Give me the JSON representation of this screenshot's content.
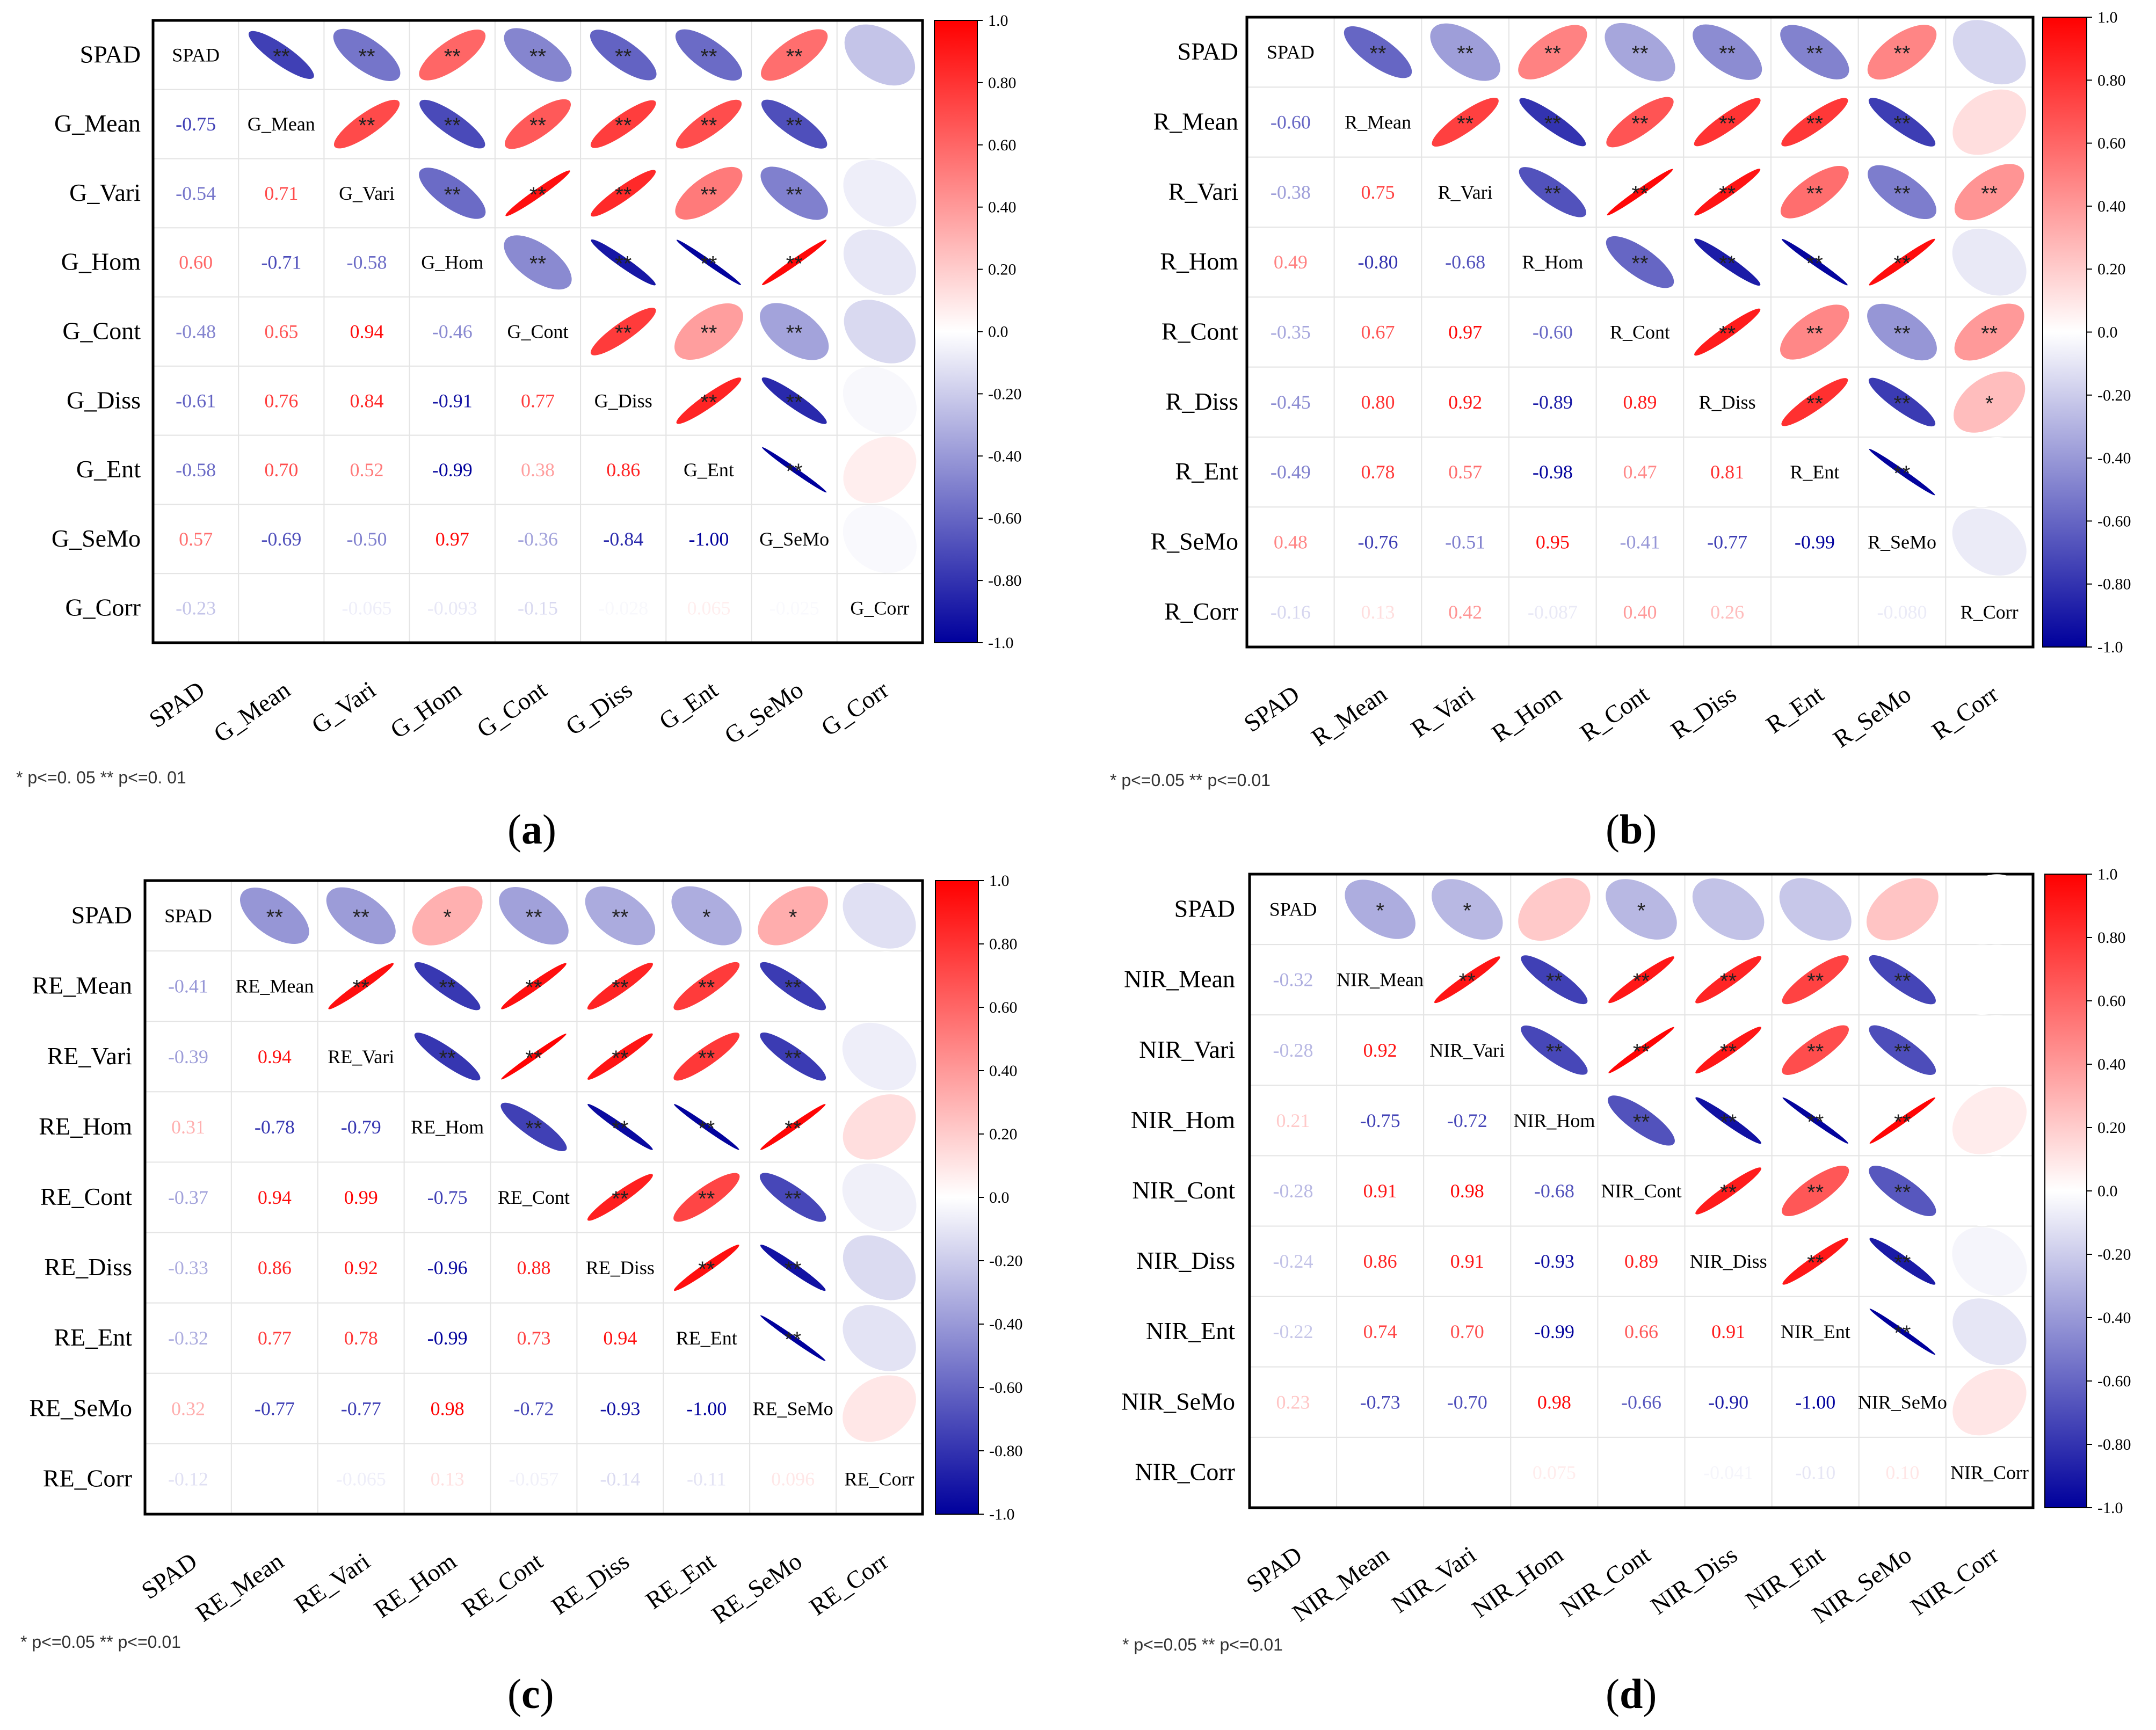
{
  "significance_legend": [
    "*",
    " p<=0. 05",
    "**",
    " p<=0. 01"
  ],
  "chart_data": [
    {
      "type": "heatmap",
      "panel_label": "a",
      "variables": [
        "SPAD",
        "G_Mean",
        "G_Vari",
        "G_Hom",
        "G_Cont",
        "G_Diss",
        "G_Ent",
        "G_SeMo",
        "G_Corr"
      ],
      "upper": "ellipse",
      "lower": "number",
      "colorbar_ticks": [
        "1.0",
        "0.80",
        "0.60",
        "0.40",
        "0.20",
        "0.0",
        "-0.20",
        "-0.40",
        "-0.60",
        "-0.80",
        "-1.0"
      ],
      "colorbar_range": [
        -1,
        1
      ],
      "colors": {
        "negative": "#00009c",
        "zero": "#ffffff",
        "positive": "#ff0000"
      },
      "footnote": "* p<=0. 05  ** p<=0. 01",
      "lower_labels": [
        [],
        [
          "-0.75"
        ],
        [
          "-0.54",
          "0.71"
        ],
        [
          "0.60",
          "-0.71",
          "-0.58"
        ],
        [
          "-0.48",
          "0.65",
          "0.94",
          "-0.46"
        ],
        [
          "-0.61",
          "0.76",
          "0.84",
          "-0.91",
          "0.77"
        ],
        [
          "-0.58",
          "0.70",
          "0.52",
          "-0.99",
          "0.38",
          "0.86"
        ],
        [
          "0.57",
          "-0.69",
          "-0.50",
          "0.97",
          "-0.36",
          "-0.84",
          "-1.00"
        ],
        [
          "-0.23",
          "",
          "-0.065",
          "-0.093",
          "-0.15",
          "-0.028",
          "0.065",
          "-0.025"
        ]
      ],
      "matrix": [
        [
          1,
          -0.75,
          -0.54,
          0.6,
          -0.48,
          -0.61,
          -0.58,
          0.57,
          -0.23
        ],
        [
          -0.75,
          1,
          0.71,
          -0.71,
          0.65,
          0.76,
          0.7,
          -0.69,
          0.0
        ],
        [
          -0.54,
          0.71,
          1,
          -0.58,
          0.94,
          0.84,
          0.52,
          -0.5,
          -0.065
        ],
        [
          0.6,
          -0.71,
          -0.58,
          1,
          -0.46,
          -0.91,
          -0.99,
          0.97,
          -0.093
        ],
        [
          -0.48,
          0.65,
          0.94,
          -0.46,
          1,
          0.77,
          0.38,
          -0.36,
          -0.15
        ],
        [
          -0.61,
          0.76,
          0.84,
          -0.91,
          0.77,
          1,
          0.86,
          -0.84,
          -0.028
        ],
        [
          -0.58,
          0.7,
          0.52,
          -0.99,
          0.38,
          0.86,
          1,
          -1.0,
          0.065
        ],
        [
          0.57,
          -0.69,
          -0.5,
          0.97,
          -0.36,
          -0.84,
          -1.0,
          1,
          -0.025
        ],
        [
          -0.23,
          0.0,
          -0.065,
          -0.093,
          -0.15,
          -0.028,
          0.065,
          -0.025,
          1
        ]
      ],
      "significance": [
        [],
        [
          "**"
        ],
        [
          "**",
          "**"
        ],
        [
          "**",
          "**",
          "**"
        ],
        [
          "**",
          "**",
          "**",
          "**"
        ],
        [
          "**",
          "**",
          "**",
          "**",
          "**"
        ],
        [
          "**",
          "**",
          "**",
          "**",
          "**",
          "**"
        ],
        [
          "**",
          "**",
          "**",
          "**",
          "**",
          "**",
          "**"
        ],
        [
          "",
          "",
          "",
          "",
          "",
          "",
          "",
          ""
        ]
      ]
    },
    {
      "type": "heatmap",
      "panel_label": "b",
      "variables": [
        "SPAD",
        "R_Mean",
        "R_Vari",
        "R_Hom",
        "R_Cont",
        "R_Diss",
        "R_Ent",
        "R_SeMo",
        "R_Corr"
      ],
      "upper": "ellipse",
      "lower": "number",
      "colorbar_ticks": [
        "1.0",
        "0.80",
        "0.60",
        "0.40",
        "0.20",
        "0.0",
        "-0.20",
        "-0.40",
        "-0.60",
        "-0.80",
        "-1.0"
      ],
      "colorbar_range": [
        -1,
        1
      ],
      "colors": {
        "negative": "#00009c",
        "zero": "#ffffff",
        "positive": "#ff0000"
      },
      "footnote": "* p<=0.05 ** p<=0.01",
      "lower_labels": [
        [],
        [
          "-0.60"
        ],
        [
          "-0.38",
          "0.75"
        ],
        [
          "0.49",
          "-0.80",
          "-0.68"
        ],
        [
          "-0.35",
          "0.67",
          "0.97",
          "-0.60"
        ],
        [
          "-0.45",
          "0.80",
          "0.92",
          "-0.89",
          "0.89"
        ],
        [
          "-0.49",
          "0.78",
          "0.57",
          "-0.98",
          "0.47",
          "0.81"
        ],
        [
          "0.48",
          "-0.76",
          "-0.51",
          "0.95",
          "-0.41",
          "-0.77",
          "-0.99"
        ],
        [
          "-0.16",
          "0.13",
          "0.42",
          "-0.087",
          "0.40",
          "0.26",
          "",
          "-0.080"
        ]
      ],
      "matrix": [
        [
          1,
          -0.6,
          -0.38,
          0.49,
          -0.35,
          -0.45,
          -0.49,
          0.48,
          -0.16
        ],
        [
          -0.6,
          1,
          0.75,
          -0.8,
          0.67,
          0.8,
          0.78,
          -0.76,
          0.13
        ],
        [
          -0.38,
          0.75,
          1,
          -0.68,
          0.97,
          0.92,
          0.57,
          -0.51,
          0.42
        ],
        [
          0.49,
          -0.8,
          -0.68,
          1,
          -0.6,
          -0.89,
          -0.98,
          0.95,
          -0.087
        ],
        [
          -0.35,
          0.67,
          0.97,
          -0.6,
          1,
          0.89,
          0.47,
          -0.41,
          0.4
        ],
        [
          -0.45,
          0.8,
          0.92,
          -0.89,
          0.89,
          1,
          0.81,
          -0.77,
          0.26
        ],
        [
          -0.49,
          0.78,
          0.57,
          -0.98,
          0.47,
          0.81,
          1,
          -0.99,
          0.0
        ],
        [
          0.48,
          -0.76,
          -0.51,
          0.95,
          -0.41,
          -0.77,
          -0.99,
          1,
          -0.08
        ],
        [
          -0.16,
          0.13,
          0.42,
          -0.087,
          0.4,
          0.26,
          0.0,
          -0.08,
          1
        ]
      ],
      "significance": [
        [],
        [
          "**"
        ],
        [
          "**",
          "**"
        ],
        [
          "**",
          "**",
          "**"
        ],
        [
          "**",
          "**",
          "**",
          "**"
        ],
        [
          "**",
          "**",
          "**",
          "**",
          "**"
        ],
        [
          "**",
          "**",
          "**",
          "**",
          "**",
          "**"
        ],
        [
          "**",
          "**",
          "**",
          "**",
          "**",
          "**",
          "**"
        ],
        [
          "",
          "",
          "**",
          "",
          "**",
          "*",
          "",
          ""
        ]
      ]
    },
    {
      "type": "heatmap",
      "panel_label": "c",
      "variables": [
        "SPAD",
        "RE_Mean",
        "RE_Vari",
        "RE_Hom",
        "RE_Cont",
        "RE_Diss",
        "RE_Ent",
        "RE_SeMo",
        "RE_Corr"
      ],
      "upper": "ellipse",
      "lower": "number",
      "colorbar_ticks": [
        "1.0",
        "0.80",
        "0.60",
        "0.40",
        "0.20",
        "0.0",
        "-0.20",
        "-0.40",
        "-0.60",
        "-0.80",
        "-1.0"
      ],
      "colorbar_range": [
        -1,
        1
      ],
      "colors": {
        "negative": "#00009c",
        "zero": "#ffffff",
        "positive": "#ff0000"
      },
      "footnote": "* p<=0.05 ** p<=0.01",
      "lower_labels": [
        [],
        [
          "-0.41"
        ],
        [
          "-0.39",
          "0.94"
        ],
        [
          "0.31",
          "-0.78",
          "-0.79"
        ],
        [
          "-0.37",
          "0.94",
          "0.99",
          "-0.75"
        ],
        [
          "-0.33",
          "0.86",
          "0.92",
          "-0.96",
          "0.88"
        ],
        [
          "-0.32",
          "0.77",
          "0.78",
          "-0.99",
          "0.73",
          "0.94"
        ],
        [
          "0.32",
          "-0.77",
          "-0.77",
          "0.98",
          "-0.72",
          "-0.93",
          "-1.00"
        ],
        [
          "-0.12",
          "",
          "-0.065",
          "0.13",
          "-0.057",
          "-0.14",
          "-0.11",
          "0.096"
        ]
      ],
      "matrix": [
        [
          1,
          -0.41,
          -0.39,
          0.31,
          -0.37,
          -0.33,
          -0.32,
          0.32,
          -0.12
        ],
        [
          -0.41,
          1,
          0.94,
          -0.78,
          0.94,
          0.86,
          0.77,
          -0.77,
          0.0
        ],
        [
          -0.39,
          0.94,
          1,
          -0.79,
          0.99,
          0.92,
          0.78,
          -0.77,
          -0.065
        ],
        [
          0.31,
          -0.78,
          -0.79,
          1,
          -0.75,
          -0.96,
          -0.99,
          0.98,
          0.13
        ],
        [
          -0.37,
          0.94,
          0.99,
          -0.75,
          1,
          0.88,
          0.73,
          -0.72,
          -0.057
        ],
        [
          -0.33,
          0.86,
          0.92,
          -0.96,
          0.88,
          1,
          0.94,
          -0.93,
          -0.14
        ],
        [
          -0.32,
          0.77,
          0.78,
          -0.99,
          0.73,
          0.94,
          1,
          -1.0,
          -0.11
        ],
        [
          0.32,
          -0.77,
          -0.77,
          0.98,
          -0.72,
          -0.93,
          -1.0,
          1,
          0.096
        ],
        [
          -0.12,
          0.0,
          -0.065,
          0.13,
          -0.057,
          -0.14,
          -0.11,
          0.096,
          1
        ]
      ],
      "significance": [
        [],
        [
          "**"
        ],
        [
          "**",
          "**"
        ],
        [
          "*",
          "**",
          "**"
        ],
        [
          "**",
          "**",
          "**",
          "**"
        ],
        [
          "**",
          "**",
          "**",
          "**",
          "**"
        ],
        [
          "*",
          "**",
          "**",
          "**",
          "**",
          "**"
        ],
        [
          "*",
          "**",
          "**",
          "**",
          "**",
          "**",
          "**"
        ],
        [
          "",
          "",
          "",
          "",
          "",
          "",
          "",
          ""
        ]
      ]
    },
    {
      "type": "heatmap",
      "panel_label": "d",
      "variables": [
        "SPAD",
        "NIR_Mean",
        "NIR_Vari",
        "NIR_Hom",
        "NIR_Cont",
        "NIR_Diss",
        "NIR_Ent",
        "NIR_SeMo",
        "NIR_Corr"
      ],
      "upper": "ellipse",
      "lower": "number",
      "colorbar_ticks": [
        "1.0",
        "0.80",
        "0.60",
        "0.40",
        "0.20",
        "0.0",
        "-0.20",
        "-0.40",
        "-0.60",
        "-0.80",
        "-1.0"
      ],
      "colorbar_range": [
        -1,
        1
      ],
      "colors": {
        "negative": "#00009c",
        "zero": "#ffffff",
        "positive": "#ff0000"
      },
      "footnote": "* p<=0.05 ** p<=0.01",
      "lower_labels": [
        [],
        [
          "-0.32"
        ],
        [
          "-0.28",
          "0.92"
        ],
        [
          "0.21",
          "-0.75",
          "-0.72"
        ],
        [
          "-0.28",
          "0.91",
          "0.98",
          "-0.68"
        ],
        [
          "-0.24",
          "0.86",
          "0.91",
          "-0.93",
          "0.89"
        ],
        [
          "-0.22",
          "0.74",
          "0.70",
          "-0.99",
          "0.66",
          "0.91"
        ],
        [
          "0.23",
          "-0.73",
          "-0.70",
          "0.98",
          "-0.66",
          "-0.90",
          "-1.00"
        ],
        [
          "",
          "",
          "",
          "0.075",
          "",
          "-0.041",
          "-0.10",
          "0.10"
        ]
      ],
      "matrix": [
        [
          1,
          -0.32,
          -0.28,
          0.21,
          -0.28,
          -0.24,
          -0.22,
          0.23,
          0.0
        ],
        [
          -0.32,
          1,
          0.92,
          -0.75,
          0.91,
          0.86,
          0.74,
          -0.73,
          0.0
        ],
        [
          -0.28,
          0.92,
          1,
          -0.72,
          0.98,
          0.91,
          0.7,
          -0.7,
          0.0
        ],
        [
          0.21,
          -0.75,
          -0.72,
          1,
          -0.68,
          -0.93,
          -0.99,
          0.98,
          0.075
        ],
        [
          -0.28,
          0.91,
          0.98,
          -0.68,
          1,
          0.89,
          0.66,
          -0.66,
          0.0
        ],
        [
          -0.24,
          0.86,
          0.91,
          -0.93,
          0.89,
          1,
          0.91,
          -0.9,
          -0.041
        ],
        [
          -0.22,
          0.74,
          0.7,
          -0.99,
          0.66,
          0.91,
          1,
          -1.0,
          -0.1
        ],
        [
          0.23,
          -0.73,
          -0.7,
          0.98,
          -0.66,
          -0.9,
          -1.0,
          1,
          0.1
        ],
        [
          0.0,
          0.0,
          0.0,
          0.075,
          0.0,
          -0.041,
          -0.1,
          0.1,
          1
        ]
      ],
      "significance": [
        [],
        [
          "*"
        ],
        [
          "*",
          "**"
        ],
        [
          "",
          "**",
          "**"
        ],
        [
          "*",
          "**",
          "**",
          "**"
        ],
        [
          "",
          "**",
          "**",
          "**",
          "**"
        ],
        [
          "",
          "**",
          "**",
          "**",
          "**",
          "**"
        ],
        [
          "",
          "**",
          "**",
          "**",
          "**",
          "**",
          "**"
        ],
        [
          "",
          "",
          "",
          "",
          "",
          "",
          "",
          ""
        ]
      ]
    }
  ]
}
